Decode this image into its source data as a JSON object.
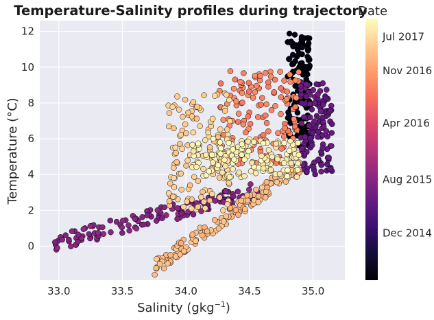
{
  "chart_data": {
    "type": "scatter",
    "title": "Temperature-Salinity profiles during trajectory",
    "xlabel": "Salinity (gkg⁻¹)",
    "ylabel": "Temperature (°C)",
    "xlim": [
      32.85,
      35.25
    ],
    "ylim": [
      -1.9,
      12.6
    ],
    "xticks": [
      "33.0",
      "33.5",
      "34.0",
      "34.5",
      "35.0"
    ],
    "yticks": [
      "0",
      "2",
      "4",
      "6",
      "8",
      "10",
      "12"
    ],
    "grid": true,
    "style": "seaborn darkgrid",
    "colorbar": {
      "label": "Date",
      "colormap": "magma",
      "ticks": [
        "Dec 2014",
        "Aug 2015",
        "Apr 2016",
        "Nov 2016",
        "Jul 2017"
      ],
      "tick_positions": [
        0.18,
        0.385,
        0.6,
        0.8,
        0.93
      ]
    },
    "colors": {
      "background": "#EAEAF2",
      "grid": "#ffffff",
      "marker_edge": "#000000"
    },
    "clusters": [
      {
        "date_frac": 0.02,
        "x": [
          34.8,
          34.98
        ],
        "y": [
          5.6,
          11.9
        ],
        "note": "dark column near 34.9"
      },
      {
        "date_frac": 0.3,
        "x": [
          34.9,
          35.15
        ],
        "y": [
          4.0,
          9.2
        ],
        "note": "purple fan"
      },
      {
        "date_frac": 0.38,
        "x": [
          32.97,
          34.6
        ],
        "y": [
          0.2,
          3.2
        ],
        "note": "purple sparse arm"
      },
      {
        "date_frac": 0.74,
        "x": [
          34.25,
          34.9
        ],
        "y": [
          4.6,
          9.8
        ],
        "note": "coral cluster"
      },
      {
        "date_frac": 0.86,
        "x": [
          33.75,
          34.9
        ],
        "y": [
          -1.2,
          4.5
        ],
        "note": "peach dense low band"
      },
      {
        "date_frac": 0.9,
        "x": [
          33.85,
          34.35
        ],
        "y": [
          2.0,
          8.6
        ],
        "note": "peach column"
      },
      {
        "date_frac": 0.97,
        "x": [
          34.05,
          34.9
        ],
        "y": [
          3.8,
          6.0
        ],
        "note": "pale yellow band"
      }
    ]
  }
}
